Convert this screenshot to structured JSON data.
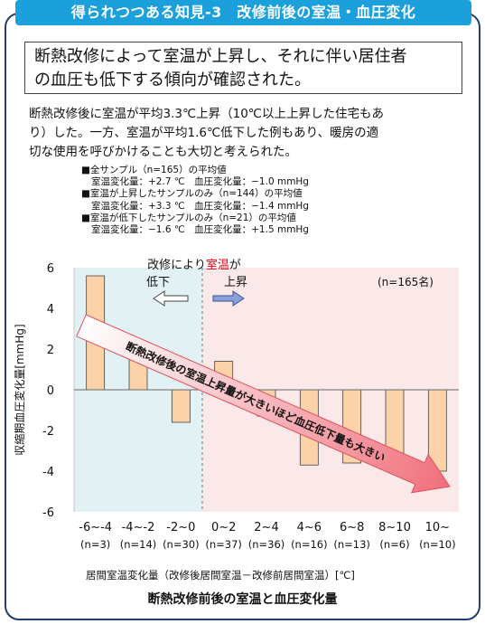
{
  "header": {
    "title": "得られつつある知見-3　改修前後の室温・血圧変化"
  },
  "key_finding": {
    "line1": "断熱改修によって室温が上昇し、それに伴い居住者",
    "line2": "の血圧も低下する傾向が確認された。"
  },
  "body": {
    "line1": "断熱改修後に室温が平均3.3℃上昇（10℃以上上昇した住宅もあ",
    "line2": "り）した。一方、室温が平均1.6℃低下した例もあり、暖房の適",
    "line3": "切な使用を呼びかけることも大切と考えられた。"
  },
  "notes": [
    {
      "head": "■全サンプル（n=165）の平均値",
      "detail": "室温変化量：+2.7 ℃　血圧変化量：−1.0 mmHg"
    },
    {
      "head": "■室温が上昇したサンプルのみ（n=144）の平均値",
      "detail": "室温変化量：+3.3 ℃　血圧変化量：−1.4 mmHg"
    },
    {
      "head": "■室温が低下したサンプルのみ（n=21）の平均値",
      "detail": "室温変化量：−1.6 ℃　血圧変化量：+1.5 mmHg"
    }
  ],
  "chart_data": {
    "type": "bar",
    "ylabel": "収縮期血圧変化量[mmHg]",
    "xlabel": "居間室温変化量（改修後居間室温－改修前居間室温）[℃]",
    "ylim": [
      -6,
      6
    ],
    "yticks": [
      "6",
      "4",
      "2",
      "0",
      "-2",
      "-4",
      "-6"
    ],
    "categories": [
      "-6~-4",
      "-4~-2",
      "-2~0",
      "0~2",
      "2~4",
      "4~6",
      "6~8",
      "8~10",
      "10~"
    ],
    "counts": [
      "(n=3)",
      "(n=14)",
      "(n=30)",
      "(n=37)",
      "(n=36)",
      "(n=16)",
      "(n=13)",
      "(n=6)",
      "(n=10)"
    ],
    "values": [
      5.6,
      2.2,
      -1.6,
      1.4,
      -1.3,
      -3.7,
      -3.6,
      -3.7,
      -4.0
    ],
    "bar_color": "#fcd2a8",
    "total_n": "(n=165名)",
    "annotations": {
      "top": "改修により",
      "top_red": "室温",
      "top_end": "が",
      "decrease": "低下",
      "increase": "上昇",
      "arrow": "断熱改修後の室温上昇量が大きいほど血圧低下量も大きい"
    },
    "regions": {
      "left_color": "#e2f1f3",
      "right_color": "#fbe9e9"
    }
  },
  "caption": "断熱改修前後の室温と血圧変化量",
  "colors": {
    "header": "#1ba0dc",
    "frame": "#1f3f73",
    "red_text": "#e60012",
    "arrow": "#f0707c"
  }
}
